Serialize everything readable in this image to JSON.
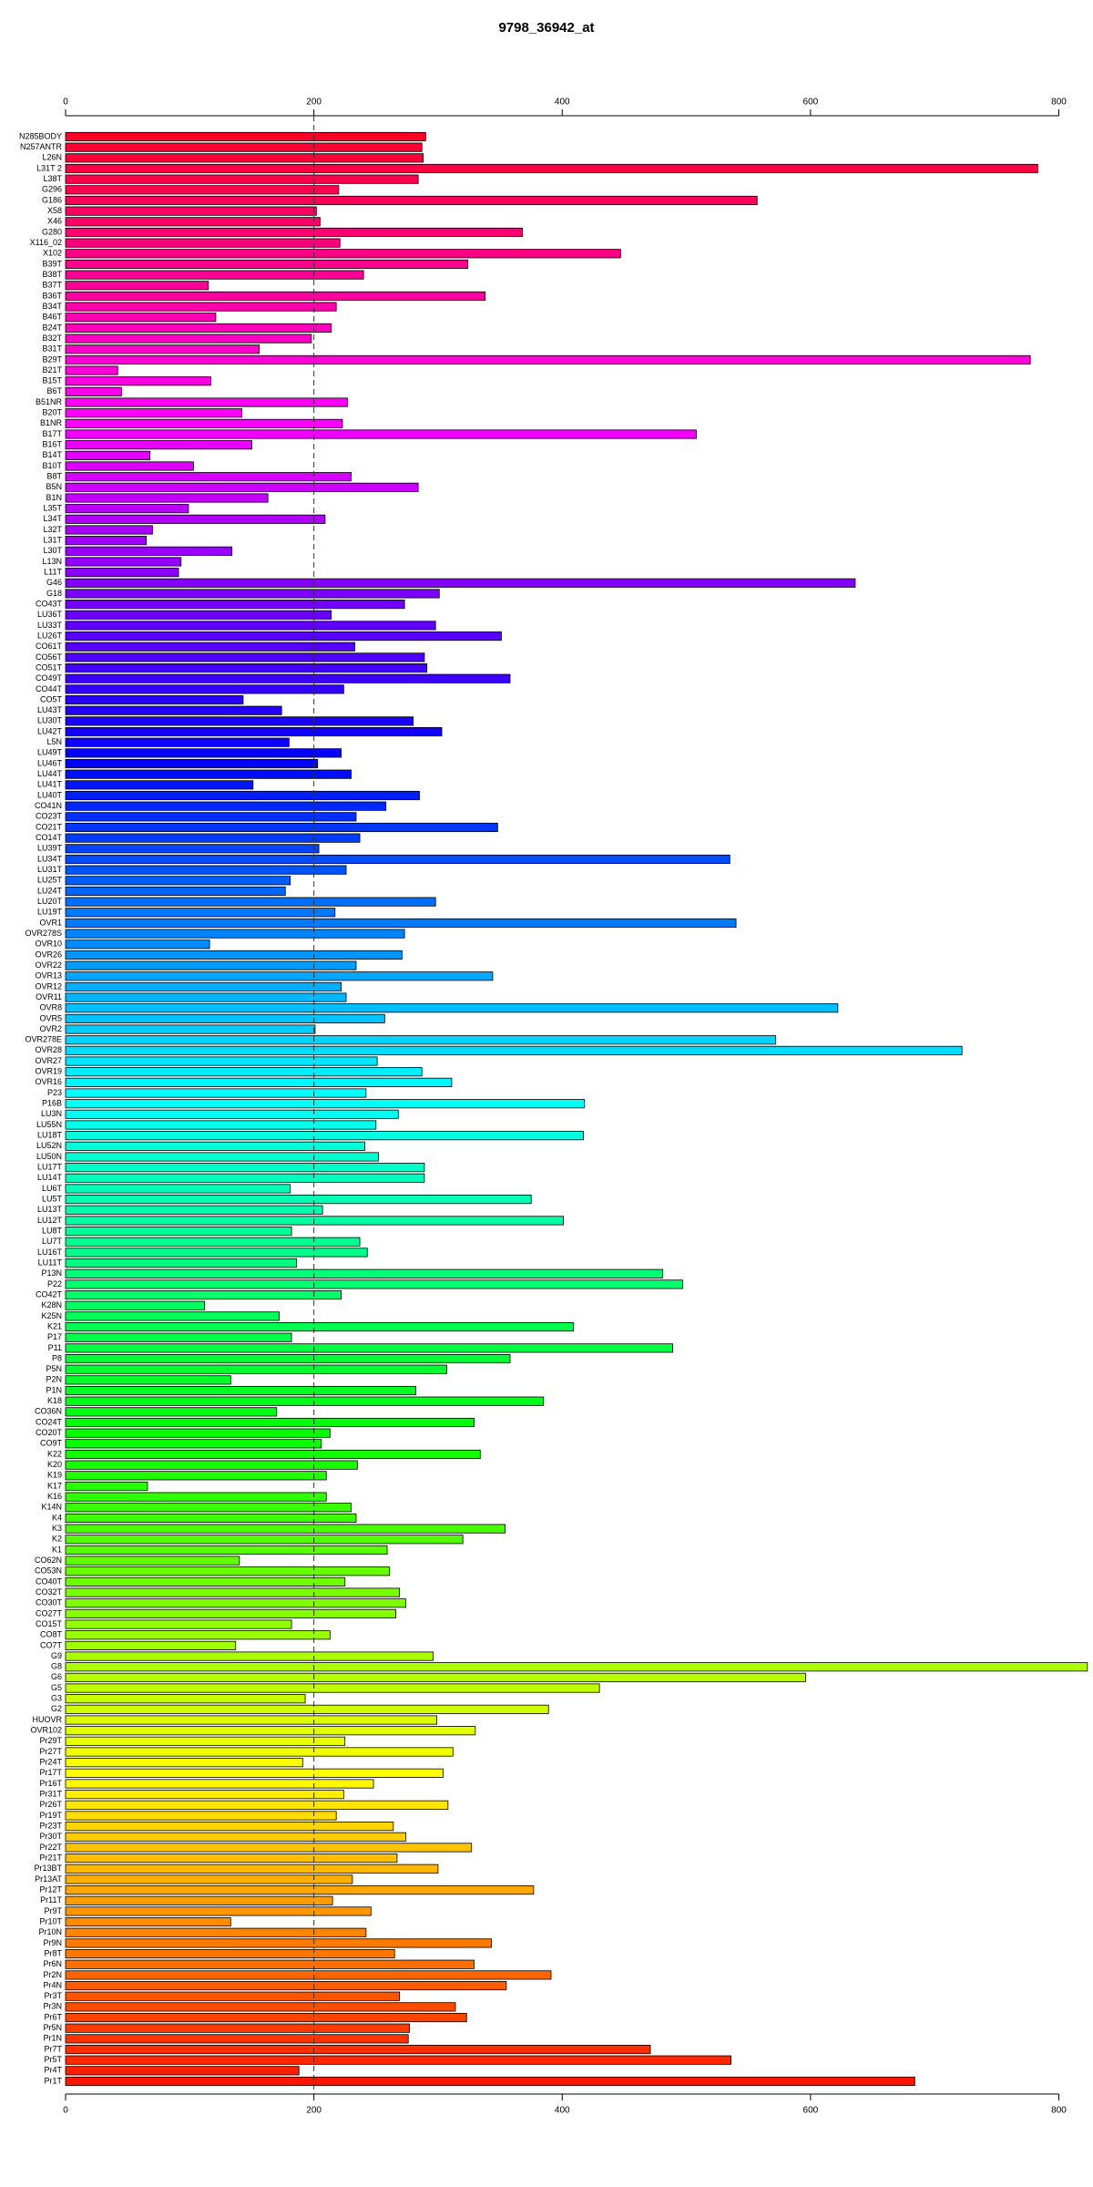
{
  "chart_data": {
    "type": "hbar",
    "title": "9798_36942_at",
    "categories": [
      "N285BODY",
      "N257ANTR",
      "L26N",
      "L31T 2",
      "L38T",
      "G296",
      "G186",
      "X58",
      "X46",
      "G280",
      "X116_02",
      "X102",
      "B39T",
      "B38T",
      "B37T",
      "B36T",
      "B34T",
      "B46T",
      "B24T",
      "B32T",
      "B31T",
      "B29T",
      "B21T",
      "B15T",
      "B6T",
      "B51NR",
      "B20T",
      "B1NR",
      "B17T",
      "B16T",
      "B14T",
      "B10T",
      "B8T",
      "B5N",
      "B1N",
      "L35T",
      "L34T",
      "L32T",
      "L31T",
      "L30T",
      "L13N",
      "L11T",
      "G46",
      "G18",
      "CO43T",
      "LU36T",
      "LU33T",
      "LU26T",
      "CO61T",
      "CO56T",
      "CO51T",
      "CO49T",
      "CO44T",
      "CO5T",
      "LU43T",
      "LU30T",
      "LU42T",
      "L5N",
      "LU49T",
      "LU46T",
      "LU44T",
      "LU41T",
      "LU40T",
      "CO41N",
      "CO23T",
      "CO21T",
      "CO14T",
      "LU39T",
      "LU34T",
      "LU31T",
      "LU25T",
      "LU24T",
      "LU20T",
      "LU19T",
      "OVR1",
      "OVR278S",
      "OVR10",
      "OVR26",
      "OVR22",
      "OVR13",
      "OVR12",
      "OVR11",
      "OVR8",
      "OVR5",
      "OVR2",
      "OVR278E",
      "OVR28",
      "OVR27",
      "OVR19",
      "OVR16",
      "P23",
      "P16B",
      "LU3N",
      "LU55N",
      "LU18T",
      "LU52N",
      "LU50N",
      "LU17T",
      "LU14T",
      "LU6T",
      "LU5T",
      "LU13T",
      "LU12T",
      "LU8T",
      "LU7T",
      "LU16T",
      "LU11T",
      "P13N",
      "P22",
      "CO42T",
      "K28N",
      "K25N",
      "K21",
      "P17",
      "P11",
      "P8",
      "P5N",
      "P2N",
      "P1N",
      "K18",
      "CO36N",
      "CO24T",
      "CO20T",
      "CO9T",
      "K22",
      "K20",
      "K19",
      "K17",
      "K16",
      "K14N",
      "K4",
      "K3",
      "K2",
      "K1",
      "CO62N",
      "CO53N",
      "CO40T",
      "CO32T",
      "CO30T",
      "CO27T",
      "CO15T",
      "CO8T",
      "CO7T",
      "G9",
      "G8",
      "G6",
      "G5",
      "G3",
      "G2",
      "HUOVR",
      "OVR102",
      "Pr29T",
      "Pr27T",
      "Pr24T",
      "Pr17T",
      "Pr16T",
      "Pr31T",
      "Pr26T",
      "Pr19T",
      "Pr23T",
      "Pr30T",
      "Pr22T",
      "Pr21T",
      "Pr13BT",
      "Pr13AT",
      "Pr12T",
      "Pr11T",
      "Pr9T",
      "Pr10T",
      "Pr10N",
      "Pr9N",
      "Pr8T",
      "Pr6N",
      "Pr2N",
      "Pr4N",
      "Pr3T",
      "Pr3N",
      "Pr6T",
      "Pr5N",
      "Pr1N",
      "Pr7T",
      "Pr5T",
      "Pr4T",
      "Pr1T"
    ],
    "values": [
      290,
      287,
      288,
      783,
      284,
      220,
      557,
      202,
      205,
      368,
      221,
      447,
      324,
      240,
      115,
      338,
      218,
      121,
      214,
      198,
      156,
      777,
      42,
      117,
      45,
      227,
      142,
      223,
      508,
      150,
      68,
      103,
      230,
      284,
      163,
      99,
      209,
      70,
      65,
      134,
      93,
      91,
      636,
      301,
      273,
      214,
      298,
      351,
      233,
      289,
      291,
      358,
      224,
      143,
      174,
      280,
      303,
      180,
      222,
      203,
      230,
      151,
      285,
      258,
      234,
      348,
      237,
      204,
      535,
      226,
      181,
      177,
      298,
      217,
      540,
      273,
      116,
      271,
      234,
      344,
      222,
      226,
      622,
      257,
      201,
      572,
      722,
      251,
      287,
      311,
      242,
      418,
      268,
      250,
      417,
      241,
      252,
      289,
      289,
      181,
      375,
      207,
      401,
      182,
      237,
      243,
      186,
      481,
      497,
      222,
      112,
      172,
      409,
      182,
      489,
      358,
      307,
      133,
      282,
      385,
      170,
      329,
      213,
      206,
      334,
      235,
      210,
      66,
      210,
      230,
      234,
      354,
      320,
      259,
      140,
      261,
      225,
      269,
      274,
      266,
      182,
      213,
      137,
      296,
      823,
      596,
      430,
      193,
      389,
      299,
      330,
      225,
      312,
      191,
      304,
      248,
      224,
      308,
      218,
      264,
      274,
      327,
      267,
      300,
      231,
      377,
      215,
      246,
      133,
      242,
      343,
      265,
      329,
      391,
      355,
      269,
      314,
      323,
      277,
      276,
      471,
      536,
      188,
      684
    ],
    "colors": [
      "hsl(350,100%,50%)",
      "hsl(348,100%,50%)",
      "hsl(346,100%,50%)",
      "hsl(344,100%,50%)",
      "hsl(342,100%,50%)",
      "hsl(341,100%,50%)",
      "hsl(339,100%,50%)",
      "hsl(337,100%,50%)",
      "hsl(335,100%,50%)",
      "hsl(333,100%,50%)",
      "hsl(331,100%,50%)",
      "hsl(329,100%,50%)",
      "hsl(327,100%,50%)",
      "hsl(325,100%,50%)",
      "hsl(324,100%,50%)",
      "hsl(322,100%,50%)",
      "hsl(320,100%,50%)",
      "hsl(318,100%,50%)",
      "hsl(316,100%,50%)",
      "hsl(314,100%,50%)",
      "hsl(312,100%,50%)",
      "hsl(310,100%,50%)",
      "hsl(309,100%,50%)",
      "hsl(307,100%,50%)",
      "hsl(305,100%,50%)",
      "hsl(303,100%,50%)",
      "hsl(301,100%,50%)",
      "hsl(299,100%,50%)",
      "hsl(297,100%,50%)",
      "hsl(295,100%,50%)",
      "hsl(293,100%,50%)",
      "hsl(292,100%,50%)",
      "hsl(290,100%,50%)",
      "hsl(288,100%,50%)",
      "hsl(286,100%,50%)",
      "hsl(284,100%,50%)",
      "hsl(282,100%,50%)",
      "hsl(280,100%,50%)",
      "hsl(278,100%,50%)",
      "hsl(276,100%,50%)",
      "hsl(275,100%,50%)",
      "hsl(273,100%,50%)",
      "hsl(271,100%,50%)",
      "hsl(269,100%,50%)",
      "hsl(267,100%,50%)",
      "hsl(265,100%,50%)",
      "hsl(263,100%,50%)",
      "hsl(261,100%,50%)",
      "hsl(260,100%,50%)",
      "hsl(258,100%,50%)",
      "hsl(256,100%,50%)",
      "hsl(254,100%,50%)",
      "hsl(252,100%,50%)",
      "hsl(250,100%,50%)",
      "hsl(248,100%,50%)",
      "hsl(246,100%,50%)",
      "hsl(244,100%,50%)",
      "hsl(243,100%,50%)",
      "hsl(241,100%,50%)",
      "hsl(239,100%,50%)",
      "hsl(237,100%,50%)",
      "hsl(235,100%,50%)",
      "hsl(233,100%,50%)",
      "hsl(231,100%,50%)",
      "hsl(229,100%,50%)",
      "hsl(227,100%,50%)",
      "hsl(226,100%,50%)",
      "hsl(224,100%,50%)",
      "hsl(222,100%,50%)",
      "hsl(220,100%,50%)",
      "hsl(218,100%,50%)",
      "hsl(216,100%,50%)",
      "hsl(214,100%,50%)",
      "hsl(212,100%,50%)",
      "hsl(211,100%,50%)",
      "hsl(209,100%,50%)",
      "hsl(207,100%,50%)",
      "hsl(205,100%,50%)",
      "hsl(203,100%,50%)",
      "hsl(201,100%,50%)",
      "hsl(199,100%,50%)",
      "hsl(197,100%,50%)",
      "hsl(195,100%,50%)",
      "hsl(194,100%,50%)",
      "hsl(192,100%,50%)",
      "hsl(190,100%,50%)",
      "hsl(188,100%,50%)",
      "hsl(186,100%,50%)",
      "hsl(184,100%,50%)",
      "hsl(182,100%,50%)",
      "hsl(180,100%,50%)",
      "hsl(178,100%,50%)",
      "hsl(177,100%,50%)",
      "hsl(175,100%,50%)",
      "hsl(173,100%,50%)",
      "hsl(171,100%,50%)",
      "hsl(169,100%,50%)",
      "hsl(167,100%,50%)",
      "hsl(165,100%,50%)",
      "hsl(163,100%,50%)",
      "hsl(162,100%,50%)",
      "hsl(160,100%,50%)",
      "hsl(158,100%,50%)",
      "hsl(156,100%,50%)",
      "hsl(154,100%,50%)",
      "hsl(152,100%,50%)",
      "hsl(150,100%,50%)",
      "hsl(148,100%,50%)",
      "hsl(146,100%,50%)",
      "hsl(145,100%,50%)",
      "hsl(143,100%,50%)",
      "hsl(141,100%,50%)",
      "hsl(139,100%,50%)",
      "hsl(137,100%,50%)",
      "hsl(135,100%,50%)",
      "hsl(133,100%,50%)",
      "hsl(131,100%,50%)",
      "hsl(129,100%,50%)",
      "hsl(128,100%,50%)",
      "hsl(126,100%,50%)",
      "hsl(124,100%,50%)",
      "hsl(122,100%,50%)",
      "hsl(120,100%,50%)",
      "hsl(118,100%,50%)",
      "hsl(116,100%,50%)",
      "hsl(114,100%,50%)",
      "hsl(112,100%,50%)",
      "hsl(111,100%,50%)",
      "hsl(109,100%,50%)",
      "hsl(107,100%,50%)",
      "hsl(105,100%,50%)",
      "hsl(103,100%,50%)",
      "hsl(101,100%,50%)",
      "hsl(99,100%,50%)",
      "hsl(97,100%,50%)",
      "hsl(96,100%,50%)",
      "hsl(94,100%,50%)",
      "hsl(92,100%,50%)",
      "hsl(90,100%,50%)",
      "hsl(88,100%,50%)",
      "hsl(86,100%,50%)",
      "hsl(84,100%,50%)",
      "hsl(82,100%,50%)",
      "hsl(80,100%,50%)",
      "hsl(79,100%,50%)",
      "hsl(77,100%,50%)",
      "hsl(75,100%,50%)",
      "hsl(73,100%,50%)",
      "hsl(71,100%,50%)",
      "hsl(69,100%,50%)",
      "hsl(67,100%,50%)",
      "hsl(65,100%,50%)",
      "hsl(63,100%,50%)",
      "hsl(62,100%,50%)",
      "hsl(60,100%,50%)",
      "hsl(58,100%,50%)",
      "hsl(56,100%,50%)",
      "hsl(54,100%,50%)",
      "hsl(52,100%,50%)",
      "hsl(50,100%,50%)",
      "hsl(48,100%,50%)",
      "hsl(46,100%,50%)",
      "hsl(45,100%,50%)",
      "hsl(43,100%,50%)",
      "hsl(41,100%,50%)",
      "hsl(39,100%,50%)",
      "hsl(37,100%,50%)",
      "hsl(35,100%,50%)",
      "hsl(33,100%,50%)",
      "hsl(31,100%,50%)",
      "hsl(29,100%,50%)",
      "hsl(28,100%,50%)",
      "hsl(26,100%,50%)",
      "hsl(24,100%,50%)",
      "hsl(22,100%,50%)",
      "hsl(20,100%,50%)",
      "hsl(18,100%,50%)",
      "hsl(16,100%,50%)",
      "hsl(14,100%,50%)",
      "hsl(12,100%,50%)",
      "hsl(11,100%,50%)",
      "hsl(9,100%,50%)",
      "hsl(7,100%,50%)",
      "hsl(5,100%,50%)"
    ],
    "xlim": [
      0,
      823
    ],
    "xticks": [
      0,
      200,
      400,
      600,
      800
    ],
    "vline": 200
  }
}
